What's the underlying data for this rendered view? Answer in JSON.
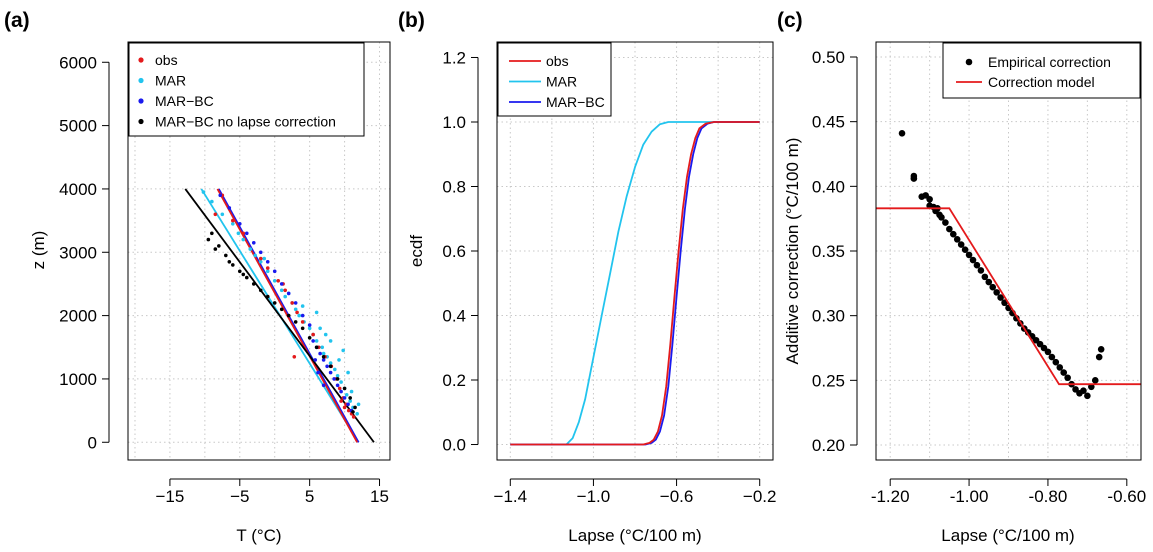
{
  "chart_data": [
    {
      "type": "scatter",
      "panel_label": "(a)",
      "xlabel": "T (°C)",
      "ylabel": "z (m)",
      "xlim": [
        -21,
        16.5
      ],
      "ylim": [
        -280,
        6320
      ],
      "xticks": [
        -15,
        -5,
        5,
        15
      ],
      "yticks": [
        0,
        1000,
        2000,
        3000,
        4000,
        5000,
        6000
      ],
      "xgrid": [
        -20,
        -10,
        0,
        10
      ],
      "ygrid": [
        0,
        1000,
        2000,
        3000,
        4000,
        5000,
        6000
      ],
      "grid": true,
      "legend_position": "top-left",
      "legend": [
        {
          "label": "obs",
          "color": "#e41a1c",
          "marker": "point"
        },
        {
          "label": "MAR",
          "color": "#22c4ee",
          "marker": "point"
        },
        {
          "label": "MAR−BC",
          "color": "#1a1aee",
          "marker": "point"
        },
        {
          "label": "MAR−BC no lapse correction",
          "color": "#000000",
          "marker": "point"
        }
      ],
      "lines": [
        {
          "series": "MAR",
          "color": "#22c4ee",
          "x": [
            -10.5,
            12.0
          ],
          "y": [
            4000,
            0
          ]
        },
        {
          "series": "MAR−BC",
          "color": "#1a1aee",
          "x": [
            -8.0,
            12.0
          ],
          "y": [
            4000,
            0
          ]
        },
        {
          "series": "obs",
          "color": "#e41a1c",
          "x": [
            -8.2,
            11.8
          ],
          "y": [
            4000,
            0
          ]
        },
        {
          "series": "MAR−BC no lapse correction",
          "color": "#000000",
          "x": [
            -12.8,
            14.2
          ],
          "y": [
            4000,
            0
          ]
        }
      ],
      "series": [
        {
          "name": "MAR",
          "color": "#22c4ee",
          "points": [
            [
              -10.2,
              3950
            ],
            [
              -9,
              3800
            ],
            [
              -7.5,
              3600
            ],
            [
              -6,
              3450
            ],
            [
              -5.2,
              3300
            ],
            [
              -4.5,
              3200
            ],
            [
              -3.5,
              3050
            ],
            [
              -2.8,
              2950
            ],
            [
              -2,
              2850
            ],
            [
              -1,
              2700
            ],
            [
              0,
              2550
            ],
            [
              1,
              2400
            ],
            [
              1.5,
              2300
            ],
            [
              2.5,
              2200
            ],
            [
              3,
              2100
            ],
            [
              3.5,
              2000
            ],
            [
              4.2,
              1900
            ],
            [
              5,
              1800
            ],
            [
              5.5,
              1700
            ],
            [
              6,
              1600
            ],
            [
              6.8,
              1500
            ],
            [
              7,
              1400
            ],
            [
              7.5,
              1350
            ],
            [
              8,
              1250
            ],
            [
              8.6,
              1150
            ],
            [
              9,
              1050
            ],
            [
              9.5,
              950
            ],
            [
              10,
              850
            ],
            [
              10.3,
              750
            ],
            [
              10.8,
              650
            ],
            [
              11.2,
              550
            ],
            [
              11.8,
              450
            ],
            [
              4,
              2150
            ],
            [
              6.5,
              1800
            ],
            [
              8,
              1600
            ],
            [
              9.2,
              1300
            ],
            [
              10.5,
              1100
            ],
            [
              6,
              2050
            ],
            [
              7.3,
              1700
            ],
            [
              2,
              2350
            ],
            [
              -1.5,
              2900
            ],
            [
              9.8,
              1450
            ],
            [
              11,
              800
            ],
            [
              12,
              600
            ]
          ]
        },
        {
          "name": "obs",
          "color": "#e41a1c",
          "points": [
            [
              -7.5,
              3900
            ],
            [
              -8.5,
              3600
            ],
            [
              -6,
              3500
            ],
            [
              -4.5,
              3300
            ],
            [
              -2,
              2900
            ],
            [
              -1,
              2750
            ],
            [
              0.5,
              2550
            ],
            [
              1.5,
              2400
            ],
            [
              1.2,
              2500
            ],
            [
              2.5,
              2200
            ],
            [
              3.2,
              2050
            ],
            [
              4,
              1900
            ],
            [
              2.8,
              1350
            ],
            [
              5.5,
              1700
            ],
            [
              6.3,
              1500
            ],
            [
              7.2,
              1350
            ],
            [
              8.1,
              1200
            ],
            [
              8.8,
              1000
            ],
            [
              9.3,
              850
            ],
            [
              9.8,
              700
            ],
            [
              10.2,
              600
            ],
            [
              10.6,
              500
            ],
            [
              11,
              450
            ],
            [
              11.3,
              400
            ],
            [
              10,
              550
            ],
            [
              9.5,
              650
            ]
          ]
        },
        {
          "name": "MAR−BC",
          "color": "#1a1aee",
          "points": [
            [
              -7.8,
              3900
            ],
            [
              -6.5,
              3700
            ],
            [
              -5,
              3450
            ],
            [
              -4,
              3300
            ],
            [
              -3,
              3150
            ],
            [
              -2,
              3000
            ],
            [
              -1,
              2850
            ],
            [
              0,
              2700
            ],
            [
              1,
              2500
            ],
            [
              2,
              2350
            ],
            [
              3,
              2200
            ],
            [
              4,
              2000
            ],
            [
              5,
              1850
            ],
            [
              5.5,
              1600
            ],
            [
              6,
              1500
            ],
            [
              6.5,
              1400
            ],
            [
              7,
              1300
            ],
            [
              7.5,
              1200
            ],
            [
              8,
              1100
            ],
            [
              8.5,
              1000
            ],
            [
              9,
              900
            ],
            [
              9.5,
              800
            ],
            [
              10,
              700
            ],
            [
              10.5,
              600
            ],
            [
              11,
              500
            ],
            [
              6.2,
              1100
            ],
            [
              7,
              900
            ],
            [
              5.8,
              1300
            ]
          ]
        },
        {
          "name": "MAR−BC no lapse correction",
          "color": "#000000",
          "points": [
            [
              -9.5,
              3200
            ],
            [
              -9,
              3300
            ],
            [
              -8,
              3100
            ],
            [
              -7,
              2950
            ],
            [
              -6,
              2800
            ],
            [
              -5,
              2700
            ],
            [
              -4,
              2600
            ],
            [
              -3,
              2500
            ],
            [
              -2,
              2400
            ],
            [
              -1,
              2300
            ],
            [
              0,
              2200
            ],
            [
              1,
              2100
            ],
            [
              2,
              2000
            ],
            [
              3,
              1900
            ],
            [
              4,
              1800
            ],
            [
              5,
              1650
            ],
            [
              6,
              1500
            ],
            [
              7,
              1350
            ],
            [
              8,
              1200
            ],
            [
              9,
              1000
            ],
            [
              10,
              850
            ],
            [
              10.8,
              700
            ],
            [
              11.5,
              550
            ],
            [
              11.2,
              480
            ],
            [
              -8.5,
              3050
            ],
            [
              -6.5,
              2850
            ],
            [
              -4.5,
              2650
            ]
          ]
        }
      ]
    },
    {
      "type": "line",
      "panel_label": "(b)",
      "xlabel": "Lapse (°C/100 m)",
      "ylabel": "ecdf",
      "xlim": [
        -1.464,
        -0.136
      ],
      "ylim": [
        -0.048,
        1.248
      ],
      "xticks": [
        -1.4,
        -1.0,
        -0.6,
        -0.2
      ],
      "yticks": [
        0.0,
        0.2,
        0.4,
        0.6,
        0.8,
        1.0,
        1.2
      ],
      "xgrid": [
        -1.2,
        -0.8,
        -0.4
      ],
      "ygrid": [
        0.0,
        0.2,
        0.4,
        0.6,
        0.8,
        1.0,
        1.2
      ],
      "grid": true,
      "legend_position": "top-left",
      "legend": [
        {
          "label": "obs",
          "color": "#e41a1c",
          "marker": "line"
        },
        {
          "label": "MAR",
          "color": "#22c4ee",
          "marker": "line"
        },
        {
          "label": "MAR−BC",
          "color": "#1a1aee",
          "marker": "line"
        }
      ],
      "series": [
        {
          "name": "MAR",
          "color": "#22c4ee",
          "x": [
            -1.4,
            -1.13,
            -1.1,
            -1.07,
            -1.04,
            -1.0,
            -0.96,
            -0.92,
            -0.88,
            -0.84,
            -0.8,
            -0.76,
            -0.72,
            -0.68,
            -0.64,
            -0.2
          ],
          "y": [
            0.0,
            0.0,
            0.02,
            0.07,
            0.14,
            0.27,
            0.4,
            0.53,
            0.66,
            0.77,
            0.86,
            0.93,
            0.97,
            0.993,
            1.0,
            1.0
          ]
        },
        {
          "name": "MAR−BC",
          "color": "#1a1aee",
          "x": [
            -1.4,
            -0.75,
            -0.72,
            -0.7,
            -0.68,
            -0.66,
            -0.64,
            -0.62,
            -0.6,
            -0.58,
            -0.56,
            -0.54,
            -0.52,
            -0.5,
            -0.48,
            -0.45,
            -0.42,
            -0.2
          ],
          "y": [
            0.0,
            0.0,
            0.005,
            0.015,
            0.04,
            0.09,
            0.18,
            0.31,
            0.46,
            0.6,
            0.73,
            0.83,
            0.9,
            0.95,
            0.98,
            0.995,
            1.0,
            1.0
          ]
        },
        {
          "name": "obs",
          "color": "#e41a1c",
          "x": [
            -1.4,
            -0.76,
            -0.73,
            -0.71,
            -0.69,
            -0.67,
            -0.65,
            -0.63,
            -0.61,
            -0.59,
            -0.57,
            -0.55,
            -0.53,
            -0.51,
            -0.49,
            -0.46,
            -0.42,
            -0.2
          ],
          "y": [
            0.0,
            0.0,
            0.005,
            0.015,
            0.04,
            0.09,
            0.18,
            0.31,
            0.46,
            0.6,
            0.73,
            0.83,
            0.9,
            0.95,
            0.98,
            0.995,
            1.0,
            1.0
          ]
        }
      ]
    },
    {
      "type": "scatter",
      "panel_label": "(c)",
      "xlabel": "Lapse (°C/100 m)",
      "ylabel": "Additive correction (°C/100 m)",
      "xlim": [
        -1.236,
        -0.564
      ],
      "ylim": [
        0.1884,
        0.5116
      ],
      "xticks": [
        -1.2,
        -1.0,
        -0.8,
        -0.6
      ],
      "yticks": [
        0.2,
        0.25,
        0.3,
        0.35,
        0.4,
        0.45,
        0.5
      ],
      "xgrid": [
        -1.1,
        -0.9,
        -0.7
      ],
      "ygrid": [
        0.2,
        0.25,
        0.3,
        0.35,
        0.4,
        0.45,
        0.5
      ],
      "grid": true,
      "legend_position": "top-right",
      "legend": [
        {
          "label": "Empirical correction",
          "color": "#000000",
          "marker": "point"
        },
        {
          "label": "Correction model",
          "color": "#e41a1c",
          "marker": "line"
        }
      ],
      "series": [
        {
          "name": "Empirical correction",
          "color": "#000000",
          "x": [
            -1.17,
            -1.14,
            -1.14,
            -1.12,
            -1.11,
            -1.1,
            -1.1,
            -1.09,
            -1.085,
            -1.08,
            -1.075,
            -1.07,
            -1.06,
            -1.05,
            -1.04,
            -1.03,
            -1.02,
            -1.01,
            -1.0,
            -0.99,
            -0.98,
            -0.97,
            -0.96,
            -0.95,
            -0.94,
            -0.93,
            -0.92,
            -0.91,
            -0.9,
            -0.89,
            -0.88,
            -0.87,
            -0.86,
            -0.85,
            -0.84,
            -0.83,
            -0.82,
            -0.81,
            -0.8,
            -0.79,
            -0.78,
            -0.77,
            -0.76,
            -0.75,
            -0.74,
            -0.73,
            -0.72,
            -0.71,
            -0.7,
            -0.69,
            -0.68,
            -0.67,
            -0.665
          ],
          "y": [
            0.441,
            0.408,
            0.406,
            0.392,
            0.393,
            0.39,
            0.385,
            0.384,
            0.381,
            0.383,
            0.378,
            0.376,
            0.372,
            0.367,
            0.363,
            0.359,
            0.355,
            0.351,
            0.347,
            0.343,
            0.339,
            0.335,
            0.33,
            0.326,
            0.322,
            0.318,
            0.314,
            0.31,
            0.306,
            0.302,
            0.298,
            0.294,
            0.29,
            0.287,
            0.284,
            0.281,
            0.278,
            0.275,
            0.272,
            0.268,
            0.264,
            0.26,
            0.256,
            0.252,
            0.247,
            0.243,
            0.24,
            0.242,
            0.238,
            0.245,
            0.25,
            0.268,
            0.274
          ]
        },
        {
          "name": "Correction model",
          "color": "#e41a1c",
          "x": [
            -1.236,
            -1.05,
            -0.772,
            -0.564
          ],
          "y": [
            0.383,
            0.383,
            0.247,
            0.247
          ]
        }
      ]
    }
  ]
}
